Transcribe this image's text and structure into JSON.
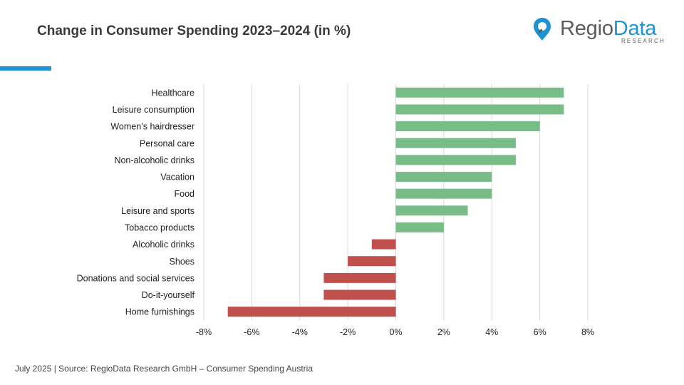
{
  "title": "Change in Consumer Spending 2023–2024 (in %)",
  "logo": {
    "name_part1": "Regio",
    "name_part2": "Data",
    "subtitle": "RESEARCH"
  },
  "footer": "July 2025 | Source: RegioData Research GmbH – Consumer Spending Austria",
  "colors": {
    "positive": "#78bd87",
    "negative": "#c0504d",
    "accent": "#1f93d2",
    "grid": "#d9d9d9"
  },
  "chart_data": {
    "type": "bar",
    "orientation": "horizontal",
    "title": "Change in Consumer Spending 2023–2024 (in %)",
    "categories": [
      "Healthcare",
      "Leisure consumption",
      "Women’s hairdresser",
      "Personal care",
      "Non-alcoholic drinks",
      "Vacation",
      "Food",
      "Leisure and sports",
      "Tobacco products",
      "Alcoholic drinks",
      "Shoes",
      "Donations and social services",
      "Do-it-yourself",
      "Home furnishings"
    ],
    "values": [
      7,
      7,
      6,
      5,
      5,
      4,
      4,
      3,
      2,
      -1,
      -2,
      -3,
      -3,
      -7
    ],
    "xlim": [
      -8,
      8
    ],
    "xticks": [
      -8,
      -6,
      -4,
      -2,
      0,
      2,
      4,
      6,
      8
    ],
    "tick_labels": [
      "-8%",
      "-6%",
      "-4%",
      "-2%",
      "0%",
      "2%",
      "4%",
      "6%",
      "8%"
    ],
    "grid": true,
    "legend": "none"
  }
}
